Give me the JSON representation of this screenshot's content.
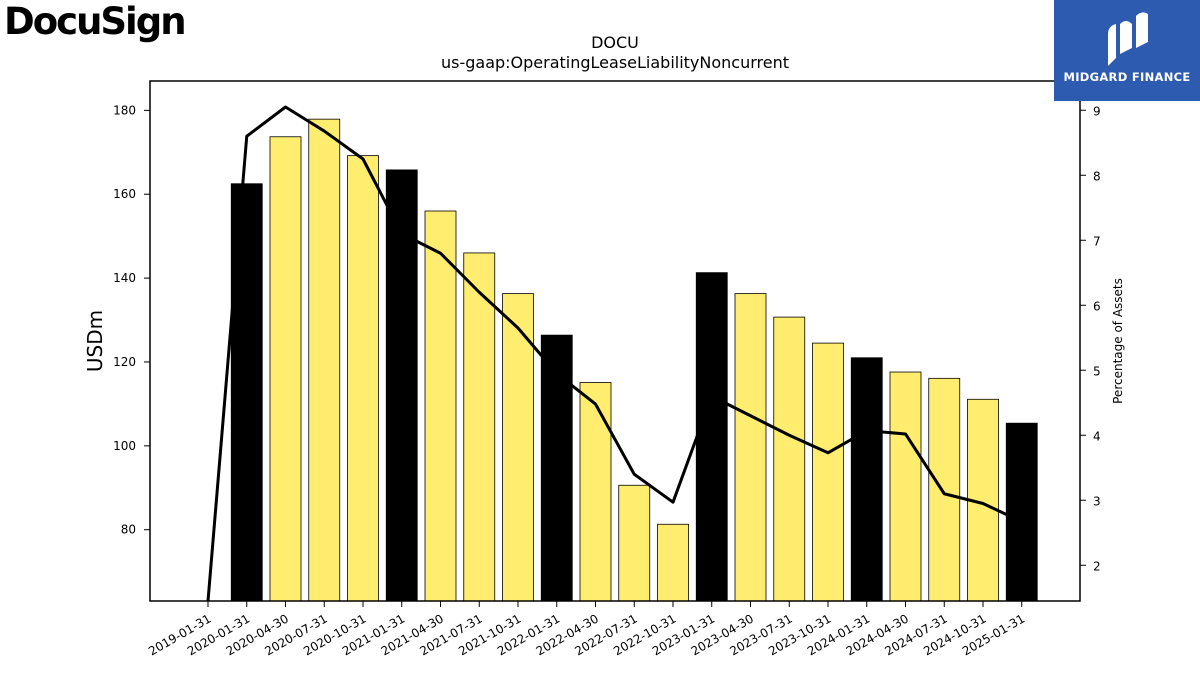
{
  "header": {
    "logo_text": "DocuSign",
    "brand_name": "MIDGARD FINANCE"
  },
  "colors": {
    "highlight_bar": "#000000",
    "regular_bar": "#ffed6f",
    "line": "#000000",
    "badge": "#2d5bb0"
  },
  "chart_data": {
    "type": "bar",
    "title": "DOCU",
    "subtitle": "us-gaap:OperatingLeaseLiabilityNoncurrent",
    "ylabel": "USDm",
    "y2label": "Percentage of Assets",
    "ylim": [
      63,
      187
    ],
    "y2lim": [
      1.45,
      9.45
    ],
    "yticks": [
      80,
      100,
      120,
      140,
      160,
      180
    ],
    "y2ticks": [
      2,
      3,
      4,
      5,
      6,
      7,
      8,
      9
    ],
    "categories": [
      "2019-01-31",
      "2020-01-31",
      "2020-04-30",
      "2020-07-31",
      "2020-10-31",
      "2021-01-31",
      "2021-04-30",
      "2021-07-31",
      "2021-10-31",
      "2022-01-31",
      "2022-04-30",
      "2022-07-31",
      "2022-10-31",
      "2023-01-31",
      "2023-04-30",
      "2023-07-31",
      "2023-10-31",
      "2024-01-31",
      "2024-04-30",
      "2024-07-31",
      "2024-10-31",
      "2025-01-31"
    ],
    "series": [
      {
        "type": "bar",
        "axis": "left",
        "values": [
          null,
          162.5,
          173.7,
          177.9,
          169.2,
          165.8,
          156.0,
          146.0,
          136.3,
          126.4,
          115.1,
          90.6,
          81.3,
          141.3,
          136.3,
          130.7,
          124.5,
          121.0,
          117.6,
          116.1,
          111.1,
          105.4
        ],
        "highlight": [
          false,
          true,
          false,
          false,
          false,
          true,
          false,
          false,
          false,
          true,
          false,
          false,
          false,
          true,
          false,
          false,
          false,
          true,
          false,
          false,
          false,
          true
        ]
      },
      {
        "type": "line",
        "axis": "right",
        "values": [
          1.45,
          8.6,
          9.05,
          8.68,
          8.25,
          7.1,
          6.8,
          6.2,
          5.65,
          4.95,
          4.48,
          3.4,
          2.97,
          4.6,
          4.3,
          4.0,
          3.73,
          4.07,
          4.02,
          3.1,
          2.95,
          2.67
        ]
      }
    ]
  }
}
